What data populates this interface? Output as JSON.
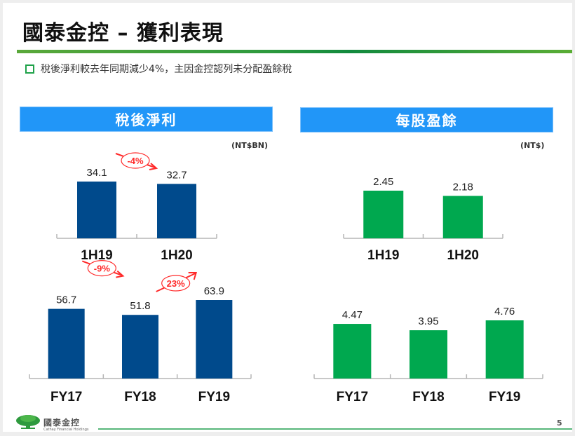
{
  "slide": {
    "title": "國泰金控 – 獲利表現",
    "bullet": "稅後淨利較去年同期減少4%，主因金控認列未分配盈餘稅",
    "page_number": "5",
    "logo": {
      "name_cn": "國泰金控",
      "name_en": "Cathay Financial Holdings",
      "icon": "tree-icon"
    },
    "colors": {
      "header_blue": "#2196f8",
      "net_income_bar": "#004a8c",
      "eps_bar": "#00a84f",
      "change_red": "#ff2a2a",
      "accent_green": "#1fa24a"
    }
  },
  "panels": [
    {
      "header": "稅後淨利",
      "unit": "(NT$BN)"
    },
    {
      "header": "每股盈餘",
      "unit": "(NT$)"
    }
  ],
  "chart_data": [
    {
      "type": "bar",
      "title": "稅後淨利 - Half Year",
      "unit": "(NT$BN)",
      "categories": [
        "1H19",
        "1H20"
      ],
      "values": [
        34.1,
        32.7
      ],
      "value_labels": [
        "34.1",
        "32.7"
      ],
      "annotations": [
        {
          "text": "-4%",
          "from": "1H19",
          "to": "1H20",
          "direction": "down"
        }
      ],
      "ylim": [
        0,
        40
      ],
      "grid": false,
      "color": "#004a8c"
    },
    {
      "type": "bar",
      "title": "稅後淨利 - Full Year",
      "unit": "(NT$BN)",
      "categories": [
        "FY17",
        "FY18",
        "FY19"
      ],
      "values": [
        56.7,
        51.8,
        63.9
      ],
      "value_labels": [
        "56.7",
        "51.8",
        "63.9"
      ],
      "annotations": [
        {
          "text": "-9%",
          "from": "FY17",
          "to": "FY18",
          "direction": "down"
        },
        {
          "text": "23%",
          "from": "FY18",
          "to": "FY19",
          "direction": "up"
        }
      ],
      "ylim": [
        0,
        80
      ],
      "grid": false,
      "color": "#004a8c"
    },
    {
      "type": "bar",
      "title": "每股盈餘 - Half Year",
      "unit": "(NT$)",
      "categories": [
        "1H19",
        "1H20"
      ],
      "values": [
        2.45,
        2.18
      ],
      "value_labels": [
        "2.45",
        "2.18"
      ],
      "annotations": [],
      "ylim": [
        0,
        3.8
      ],
      "grid": false,
      "color": "#00a84f"
    },
    {
      "type": "bar",
      "title": "每股盈餘 - Full Year",
      "unit": "(NT$)",
      "categories": [
        "FY17",
        "FY18",
        "FY19"
      ],
      "values": [
        4.47,
        3.95,
        4.76
      ],
      "value_labels": [
        "4.47",
        "3.95",
        "4.76"
      ],
      "annotations": [],
      "ylim": [
        0,
        5.5
      ],
      "grid": false,
      "color": "#00a84f"
    }
  ]
}
